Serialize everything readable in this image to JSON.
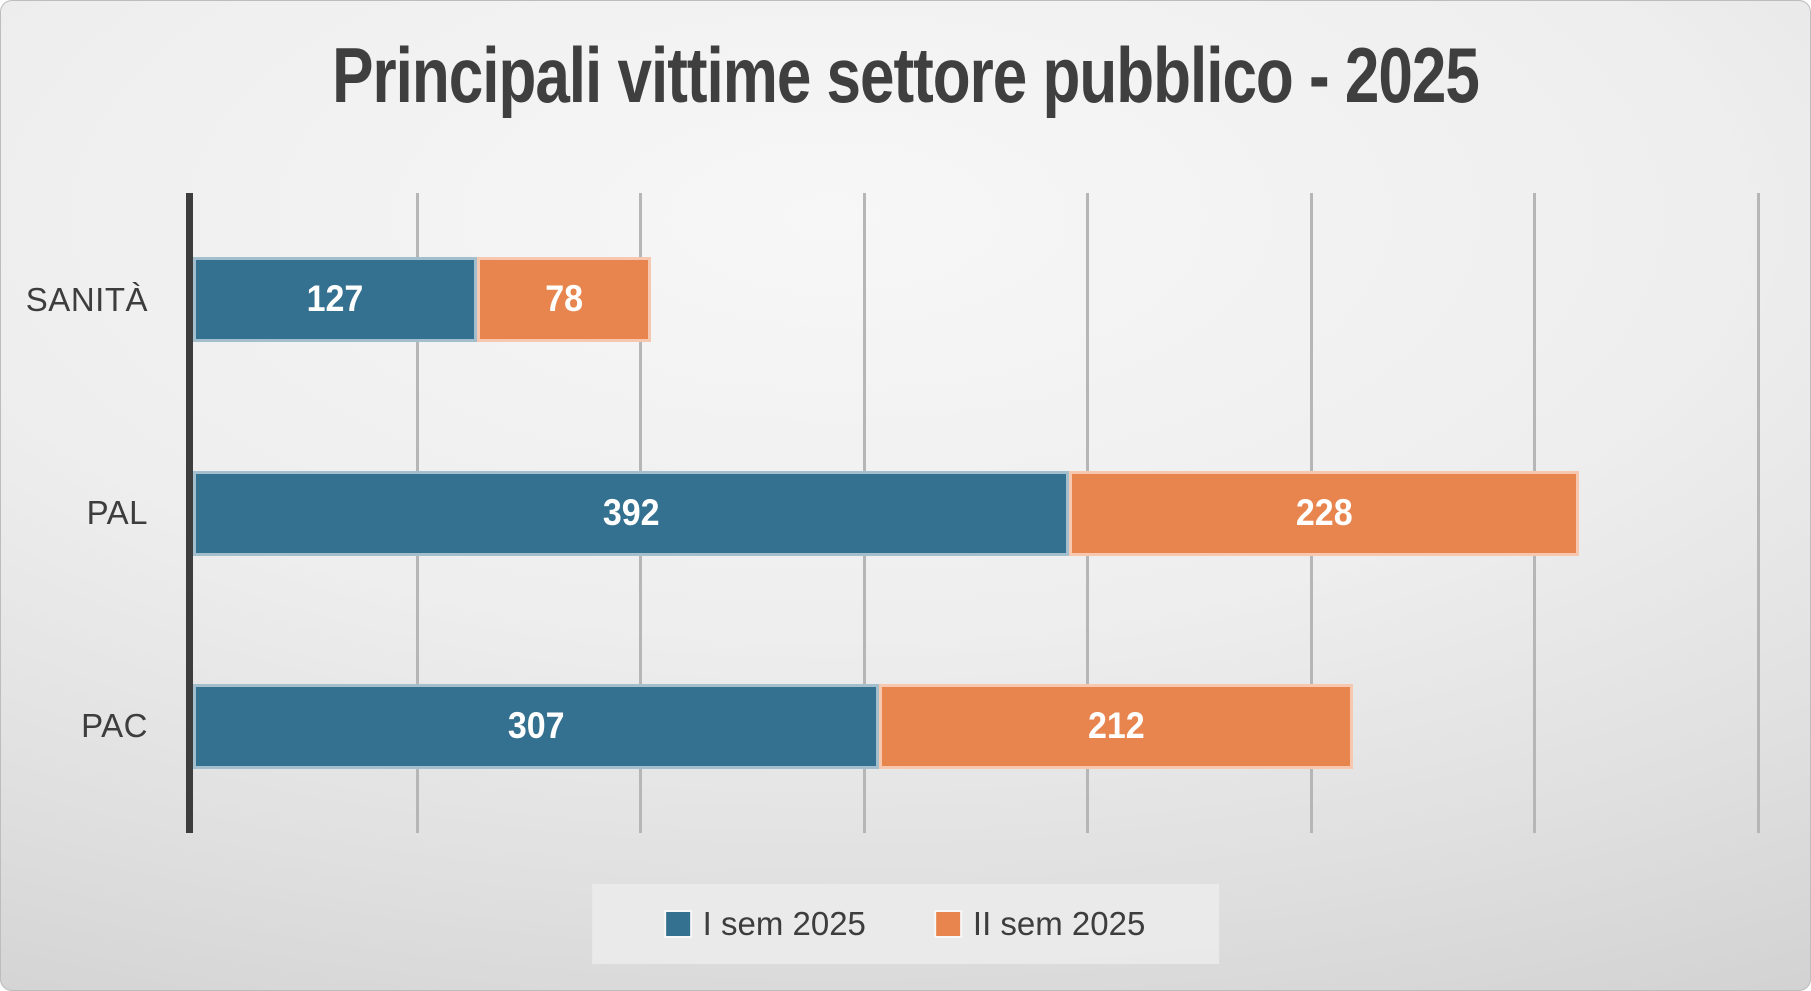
{
  "slide": {
    "title": "Principali vittime settore pubblico - 2025"
  },
  "chart_data": {
    "type": "bar",
    "orientation": "horizontal-stacked",
    "title": "Principali vittime settore pubblico - 2025",
    "categories": [
      "SANITÀ",
      "PAL",
      "PAC"
    ],
    "series": [
      {
        "name": "I sem 2025",
        "color": "#34708F",
        "values": [
          127,
          392,
          307
        ]
      },
      {
        "name": "II sem 2025",
        "color": "#E8854E",
        "values": [
          78,
          228,
          212
        ]
      }
    ],
    "totals": [
      205,
      620,
      519
    ],
    "xlabel": "",
    "ylabel": "",
    "xlim": [
      0,
      700
    ],
    "gridline_step": 100,
    "grid": "vertical-only",
    "axis_tick_labels_visible": false,
    "data_labels": "inside-center-white",
    "legend_position": "bottom-center"
  },
  "colors": {
    "series1": "#34708F",
    "series2": "#E8854E",
    "title_text": "#3f3f3f",
    "axis_line": "#3d3d3d",
    "gridline": "#b6b6b6",
    "category_text": "#3d3d3d",
    "legend_background": "#eaeaea",
    "background_light": "#f7f7f7",
    "background_dark": "#c6c6c6"
  }
}
